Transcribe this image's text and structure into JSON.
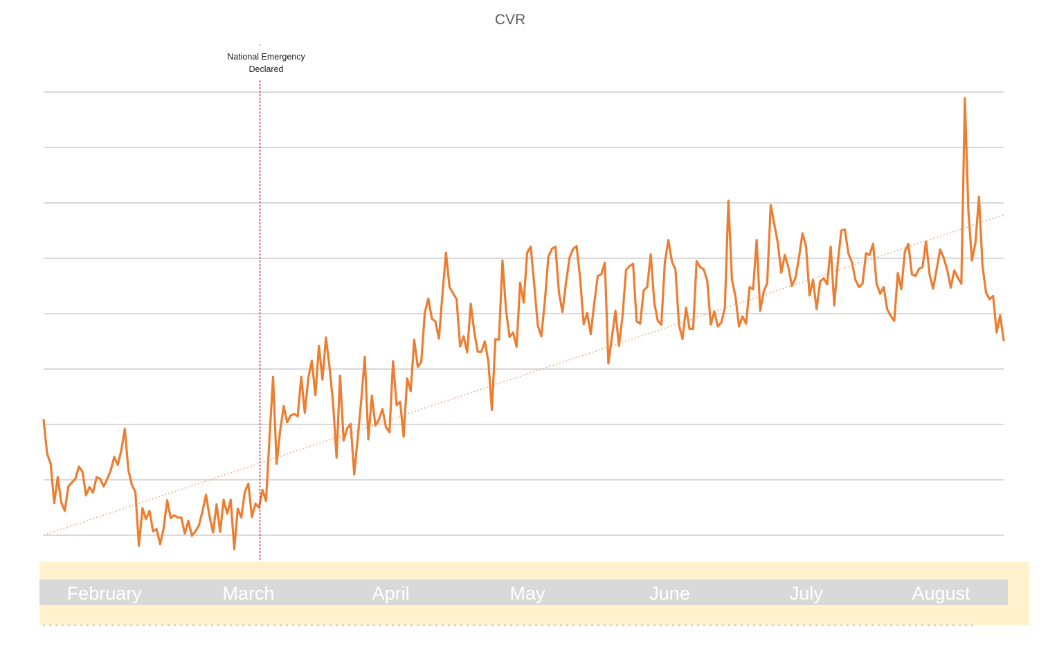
{
  "chart_data": {
    "type": "line",
    "title": "CVR",
    "xlabel": "",
    "ylabel": "",
    "x_unit": "day",
    "y_unit": "relative (no axis labels printed)",
    "ylim": [
      0,
      8.2
    ],
    "grid": true,
    "gridline_count": 9,
    "tick_labels": {
      "x": [
        "February",
        "March",
        "April",
        "May",
        "June",
        "July",
        "August"
      ],
      "y": []
    },
    "month_bands": [
      {
        "label": "February",
        "start_index": 0,
        "end_index": 32
      },
      {
        "label": "March",
        "start_index": 34,
        "end_index": 74
      },
      {
        "label": "April",
        "start_index": 76,
        "end_index": 107
      },
      {
        "label": "May",
        "start_index": 109,
        "end_index": 146
      },
      {
        "label": "June",
        "start_index": 148,
        "end_index": 182
      },
      {
        "label": "July",
        "start_index": 184,
        "end_index": 218
      },
      {
        "label": "August",
        "start_index": 220,
        "end_index": 253
      }
    ],
    "series": [
      {
        "type": "line",
        "color": "#ed7d31",
        "x_start_index": 0,
        "x_end_index": 253,
        "values": [
          2.08,
          1.47,
          1.29,
          0.58,
          1.05,
          0.59,
          0.44,
          0.88,
          0.95,
          1.02,
          1.24,
          1.15,
          0.72,
          0.87,
          0.77,
          1.05,
          1.02,
          0.88,
          1.01,
          1.17,
          1.41,
          1.27,
          1.53,
          1.92,
          1.18,
          0.91,
          0.78,
          -0.19,
          0.49,
          0.29,
          0.44,
          0.07,
          0.11,
          -0.16,
          0.12,
          0.63,
          0.31,
          0.36,
          0.32,
          0.32,
          0.03,
          0.26,
          -0.01,
          0.07,
          0.18,
          0.43,
          0.73,
          0.34,
          0.05,
          0.56,
          0.06,
          0.64,
          0.39,
          0.64,
          -0.25,
          0.48,
          0.32,
          0.79,
          0.93,
          0.33,
          0.57,
          0.5,
          0.82,
          0.62,
          1.77,
          2.86,
          1.29,
          1.88,
          2.33,
          2.04,
          2.16,
          2.19,
          2.15,
          2.86,
          2.21,
          2.84,
          3.15,
          2.53,
          3.42,
          2.81,
          3.57,
          3.04,
          2.4,
          1.4,
          2.88,
          1.71,
          1.93,
          2.01,
          1.1,
          1.76,
          2.44,
          3.22,
          1.73,
          2.52,
          1.98,
          2.09,
          2.28,
          1.95,
          1.86,
          3.14,
          2.35,
          2.41,
          1.78,
          2.83,
          2.6,
          3.53,
          3.04,
          3.13,
          4.02,
          4.27,
          3.91,
          3.86,
          3.55,
          4.35,
          5.1,
          4.48,
          4.37,
          4.26,
          3.41,
          3.59,
          3.3,
          4.18,
          3.68,
          3.31,
          3.31,
          3.5,
          3.14,
          2.26,
          3.54,
          3.53,
          4.96,
          4.07,
          3.58,
          3.66,
          3.4,
          4.56,
          4.2,
          5.1,
          5.21,
          4.52,
          3.79,
          3.59,
          4.22,
          5.03,
          5.17,
          5.21,
          4.38,
          4.03,
          4.56,
          5.01,
          5.17,
          5.22,
          4.63,
          3.81,
          4.01,
          3.63,
          4.19,
          4.68,
          4.71,
          4.92,
          3.1,
          3.57,
          4.05,
          3.42,
          3.95,
          4.79,
          4.86,
          4.9,
          3.86,
          3.82,
          4.42,
          4.48,
          5.07,
          4.2,
          3.87,
          3.8,
          4.93,
          5.33,
          4.94,
          4.8,
          3.8,
          3.54,
          4.11,
          3.72,
          3.72,
          4.95,
          4.84,
          4.8,
          4.6,
          3.8,
          4.04,
          3.77,
          3.84,
          4.11,
          6.04,
          4.61,
          4.31,
          3.77,
          3.95,
          3.82,
          4.48,
          4.44,
          5.33,
          4.05,
          4.4,
          4.55,
          5.96,
          5.62,
          5.28,
          4.74,
          5.06,
          4.84,
          4.5,
          4.64,
          5.01,
          5.45,
          5.22,
          4.33,
          4.61,
          4.08,
          4.58,
          4.64,
          4.53,
          5.21,
          4.15,
          4.92,
          5.5,
          5.52,
          5.09,
          4.93,
          4.61,
          4.48,
          4.54,
          5.09,
          5.06,
          5.26,
          4.54,
          4.36,
          4.48,
          4.08,
          3.96,
          3.87,
          4.73,
          4.44,
          5.12,
          5.26,
          4.71,
          4.68,
          4.81,
          4.84,
          5.3,
          4.71,
          4.45,
          4.8,
          5.16,
          5.01,
          4.79,
          4.47,
          4.78,
          4.65,
          4.54,
          7.89,
          5.85,
          4.96,
          5.28,
          6.11,
          4.86,
          4.38,
          4.26,
          4.32,
          3.66,
          3.97,
          3.52
        ]
      },
      {
        "type": "trendline",
        "style": "dotted",
        "color": "#f4b183",
        "x_start_index": 0,
        "x_end_index": 253,
        "y_start": 0.0,
        "y_end": 5.78
      }
    ],
    "annotations": [
      {
        "type": "vertical-line",
        "style": "dashed",
        "color": "#e0303a",
        "x_index": 57,
        "label": "National Emergency Declared",
        "label_lines": [
          "National Emergency",
          "Declared"
        ]
      }
    ],
    "legend": "none"
  },
  "colors": {
    "series": "#ed7d31",
    "trendline": "#f4b183",
    "annotation_line": "#e0303a",
    "gridline": "#d9d9d9",
    "month_band_background": "#fff2cc",
    "month_label_box": "#d9d9d9",
    "month_label_text": "#ffffff",
    "title_text": "#595959"
  }
}
